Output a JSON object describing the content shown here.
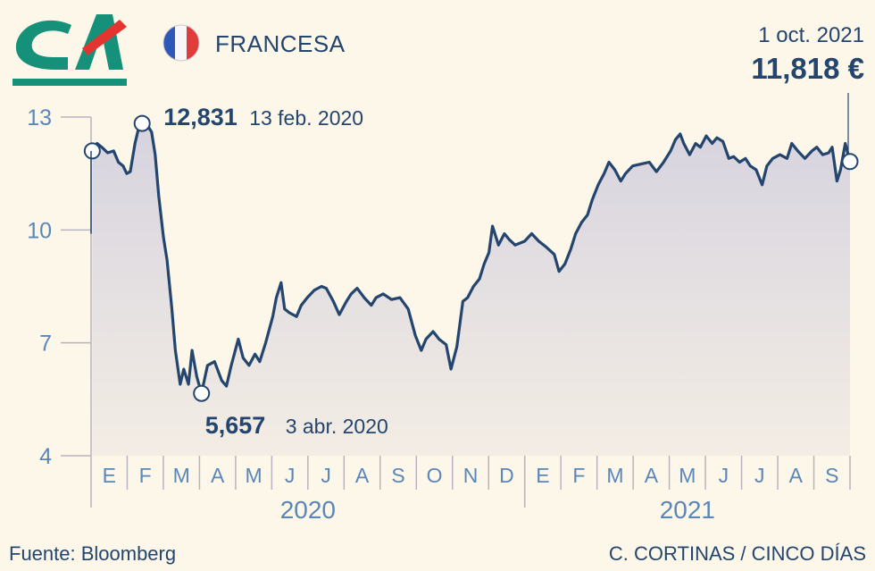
{
  "header": {
    "company": "FRANCESA",
    "last_date": "1 oct. 2021",
    "last_value": "11,818 €",
    "colors": {
      "brand_green": "#15917a",
      "brand_red": "#e3342f",
      "text": "#23456e"
    }
  },
  "logo": {
    "name": "credit-agricole-logo",
    "text": "CA"
  },
  "flag": {
    "name": "france-flag-icon"
  },
  "footer": {
    "source": "Fuente: Bloomberg",
    "credit": "C. CORTINAS / CINCO DÍAS"
  },
  "chart_data": {
    "type": "area",
    "title": "",
    "ylim": [
      4,
      13
    ],
    "y_ticks": [
      4,
      7,
      10,
      13
    ],
    "x_start": "2020-01-01",
    "x_end": "2021-10-01",
    "month_labels": [
      "E",
      "F",
      "M",
      "A",
      "M",
      "J",
      "J",
      "A",
      "S",
      "O",
      "N",
      "D",
      "E",
      "F",
      "M",
      "A",
      "M",
      "J",
      "J",
      "A",
      "S"
    ],
    "years": [
      "2020",
      "2021"
    ],
    "grid": false,
    "line_color": "#23456e",
    "fill_color": "#ddd9e0",
    "series": [
      {
        "values": [
          [
            "2020-01-02",
            12.1
          ],
          [
            "2020-01-06",
            12.3
          ],
          [
            "2020-01-10",
            12.2
          ],
          [
            "2020-01-15",
            12.05
          ],
          [
            "2020-01-20",
            12.1
          ],
          [
            "2020-01-24",
            11.8
          ],
          [
            "2020-01-28",
            11.7
          ],
          [
            "2020-01-31",
            11.5
          ],
          [
            "2020-02-03",
            11.55
          ],
          [
            "2020-02-07",
            12.3
          ],
          [
            "2020-02-10",
            12.7
          ],
          [
            "2020-02-13",
            12.831
          ],
          [
            "2020-02-18",
            12.75
          ],
          [
            "2020-02-21",
            12.6
          ],
          [
            "2020-02-24",
            12.0
          ],
          [
            "2020-02-27",
            10.9
          ],
          [
            "2020-03-02",
            9.8
          ],
          [
            "2020-03-05",
            9.2
          ],
          [
            "2020-03-09",
            7.9
          ],
          [
            "2020-03-12",
            6.8
          ],
          [
            "2020-03-16",
            5.9
          ],
          [
            "2020-03-19",
            6.3
          ],
          [
            "2020-03-23",
            5.9
          ],
          [
            "2020-03-26",
            6.8
          ],
          [
            "2020-03-30",
            6.1
          ],
          [
            "2020-04-03",
            5.657
          ],
          [
            "2020-04-08",
            6.4
          ],
          [
            "2020-04-14",
            6.5
          ],
          [
            "2020-04-20",
            6.0
          ],
          [
            "2020-04-24",
            5.85
          ],
          [
            "2020-04-28",
            6.4
          ],
          [
            "2020-05-04",
            7.1
          ],
          [
            "2020-05-08",
            6.6
          ],
          [
            "2020-05-13",
            6.4
          ],
          [
            "2020-05-18",
            6.7
          ],
          [
            "2020-05-22",
            6.5
          ],
          [
            "2020-05-27",
            7.0
          ],
          [
            "2020-06-02",
            7.7
          ],
          [
            "2020-06-05",
            8.2
          ],
          [
            "2020-06-09",
            8.6
          ],
          [
            "2020-06-12",
            7.9
          ],
          [
            "2020-06-16",
            7.8
          ],
          [
            "2020-06-22",
            7.7
          ],
          [
            "2020-06-26",
            8.0
          ],
          [
            "2020-07-01",
            8.2
          ],
          [
            "2020-07-07",
            8.4
          ],
          [
            "2020-07-13",
            8.5
          ],
          [
            "2020-07-17",
            8.45
          ],
          [
            "2020-07-23",
            8.1
          ],
          [
            "2020-07-28",
            7.75
          ],
          [
            "2020-08-03",
            8.1
          ],
          [
            "2020-08-07",
            8.3
          ],
          [
            "2020-08-12",
            8.45
          ],
          [
            "2020-08-18",
            8.2
          ],
          [
            "2020-08-24",
            8.0
          ],
          [
            "2020-08-28",
            8.2
          ],
          [
            "2020-09-03",
            8.3
          ],
          [
            "2020-09-10",
            8.15
          ],
          [
            "2020-09-17",
            8.2
          ],
          [
            "2020-09-24",
            7.9
          ],
          [
            "2020-09-30",
            7.2
          ],
          [
            "2020-10-05",
            6.8
          ],
          [
            "2020-10-09",
            7.1
          ],
          [
            "2020-10-15",
            7.3
          ],
          [
            "2020-10-20",
            7.1
          ],
          [
            "2020-10-26",
            6.95
          ],
          [
            "2020-10-30",
            6.3
          ],
          [
            "2020-11-04",
            6.9
          ],
          [
            "2020-11-09",
            8.1
          ],
          [
            "2020-11-13",
            8.2
          ],
          [
            "2020-11-18",
            8.5
          ],
          [
            "2020-11-23",
            8.7
          ],
          [
            "2020-11-27",
            9.1
          ],
          [
            "2020-12-01",
            9.4
          ],
          [
            "2020-12-04",
            10.1
          ],
          [
            "2020-12-09",
            9.6
          ],
          [
            "2020-12-14",
            9.9
          ],
          [
            "2020-12-18",
            9.75
          ],
          [
            "2020-12-23",
            9.6
          ],
          [
            "2020-12-31",
            9.7
          ],
          [
            "2021-01-06",
            9.9
          ],
          [
            "2021-01-12",
            9.7
          ],
          [
            "2021-01-18",
            9.55
          ],
          [
            "2021-01-25",
            9.35
          ],
          [
            "2021-01-29",
            8.9
          ],
          [
            "2021-02-03",
            9.1
          ],
          [
            "2021-02-08",
            9.5
          ],
          [
            "2021-02-12",
            9.9
          ],
          [
            "2021-02-17",
            10.2
          ],
          [
            "2021-02-22",
            10.4
          ],
          [
            "2021-02-26",
            10.8
          ],
          [
            "2021-03-03",
            11.2
          ],
          [
            "2021-03-08",
            11.5
          ],
          [
            "2021-03-12",
            11.8
          ],
          [
            "2021-03-17",
            11.6
          ],
          [
            "2021-03-22",
            11.3
          ],
          [
            "2021-03-26",
            11.5
          ],
          [
            "2021-04-01",
            11.7
          ],
          [
            "2021-04-08",
            11.75
          ],
          [
            "2021-04-15",
            11.8
          ],
          [
            "2021-04-21",
            11.55
          ],
          [
            "2021-04-27",
            11.8
          ],
          [
            "2021-05-03",
            12.1
          ],
          [
            "2021-05-07",
            12.4
          ],
          [
            "2021-05-11",
            12.55
          ],
          [
            "2021-05-14",
            12.3
          ],
          [
            "2021-05-19",
            12.0
          ],
          [
            "2021-05-24",
            12.3
          ],
          [
            "2021-05-28",
            12.2
          ],
          [
            "2021-06-02",
            12.5
          ],
          [
            "2021-06-07",
            12.3
          ],
          [
            "2021-06-11",
            12.45
          ],
          [
            "2021-06-16",
            12.35
          ],
          [
            "2021-06-21",
            11.9
          ],
          [
            "2021-06-25",
            11.95
          ],
          [
            "2021-06-30",
            11.8
          ],
          [
            "2021-07-05",
            11.9
          ],
          [
            "2021-07-09",
            11.7
          ],
          [
            "2021-07-14",
            11.6
          ],
          [
            "2021-07-19",
            11.2
          ],
          [
            "2021-07-23",
            11.7
          ],
          [
            "2021-07-28",
            11.9
          ],
          [
            "2021-08-03",
            12.0
          ],
          [
            "2021-08-09",
            11.9
          ],
          [
            "2021-08-13",
            12.3
          ],
          [
            "2021-08-18",
            12.1
          ],
          [
            "2021-08-24",
            11.9
          ],
          [
            "2021-08-30",
            12.1
          ],
          [
            "2021-09-03",
            12.2
          ],
          [
            "2021-09-08",
            12.0
          ],
          [
            "2021-09-13",
            12.05
          ],
          [
            "2021-09-16",
            12.2
          ],
          [
            "2021-09-20",
            11.3
          ],
          [
            "2021-09-23",
            11.6
          ],
          [
            "2021-09-27",
            12.3
          ],
          [
            "2021-10-01",
            11.818
          ]
        ]
      }
    ],
    "annotations": [
      {
        "date": "2020-01-02",
        "value": 12.1,
        "label": "",
        "sublabel": ""
      },
      {
        "date": "2020-02-13",
        "value": 12.831,
        "label": "12,831",
        "sublabel": "13 feb. 2020"
      },
      {
        "date": "2020-04-03",
        "value": 5.657,
        "label": "5,657",
        "sublabel": "3 abr. 2020"
      },
      {
        "date": "2021-10-01",
        "value": 11.818,
        "label": "",
        "sublabel": ""
      }
    ]
  }
}
